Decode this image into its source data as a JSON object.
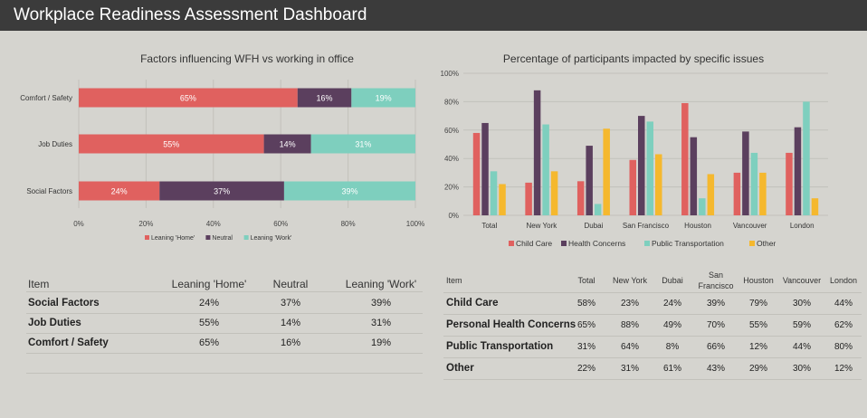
{
  "dashboard": {
    "title": "Workplace Readiness Assessment Dashboard"
  },
  "chart_data": [
    {
      "type": "bar",
      "orientation": "horizontal",
      "stacked": true,
      "title": "Factors influencing WFH vs working in office",
      "categories": [
        "Comfort / Safety",
        "Job Duties",
        "Social Factors"
      ],
      "series": [
        {
          "name": "Leaning 'Home'",
          "values": [
            65,
            55,
            24
          ],
          "color": "#e0615f"
        },
        {
          "name": "Neutral",
          "values": [
            16,
            14,
            37
          ],
          "color": "#5b3f5e"
        },
        {
          "name": "Leaning 'Work'",
          "values": [
            19,
            31,
            39
          ],
          "color": "#7ecfbe"
        }
      ],
      "xticks": [
        "0%",
        "20%",
        "40%",
        "60%",
        "80%",
        "100%"
      ],
      "xlim": [
        0,
        100
      ],
      "legend": "bottom"
    },
    {
      "type": "bar",
      "title": "Percentage of participants impacted by specific issues",
      "categories": [
        "Total",
        "New York",
        "Dubai",
        "San Francisco",
        "Houston",
        "Vancouver",
        "London"
      ],
      "series": [
        {
          "name": "Child Care",
          "values": [
            58,
            23,
            24,
            39,
            79,
            30,
            44
          ],
          "color": "#e0615f"
        },
        {
          "name": "Health Concerns",
          "values": [
            65,
            88,
            49,
            70,
            55,
            59,
            62
          ],
          "color": "#5b3f5e"
        },
        {
          "name": "Public Transportation",
          "values": [
            31,
            64,
            8,
            66,
            12,
            44,
            80
          ],
          "color": "#7ecfbe"
        },
        {
          "name": "Other",
          "values": [
            22,
            31,
            61,
            43,
            29,
            30,
            12
          ],
          "color": "#f5b82e"
        }
      ],
      "yticks": [
        "0%",
        "20%",
        "40%",
        "60%",
        "80%",
        "100%"
      ],
      "ylim": [
        0,
        100
      ],
      "legend": "bottom"
    }
  ],
  "table_left": {
    "headers": [
      "Item",
      "Leaning 'Home'",
      "Neutral",
      "Leaning 'Work'"
    ],
    "rows": [
      {
        "label": "Social Factors",
        "cells": [
          "24%",
          "37%",
          "39%"
        ]
      },
      {
        "label": "Job Duties",
        "cells": [
          "55%",
          "14%",
          "31%"
        ]
      },
      {
        "label": "Comfort / Safety",
        "cells": [
          "65%",
          "16%",
          "19%"
        ]
      }
    ]
  },
  "table_right": {
    "headers": [
      "Item",
      "Total",
      "New York",
      "Dubai",
      "San Francisco",
      "Houston",
      "Vancouver",
      "London"
    ],
    "rows": [
      {
        "label": "Child Care",
        "cells": [
          "58%",
          "23%",
          "24%",
          "39%",
          "79%",
          "30%",
          "44%"
        ]
      },
      {
        "label": "Personal Health Concerns",
        "cells": [
          "65%",
          "88%",
          "49%",
          "70%",
          "55%",
          "59%",
          "62%"
        ]
      },
      {
        "label": "Public Transportation",
        "cells": [
          "31%",
          "64%",
          "8%",
          "66%",
          "12%",
          "44%",
          "80%"
        ]
      },
      {
        "label": "Other",
        "cells": [
          "22%",
          "31%",
          "61%",
          "43%",
          "29%",
          "30%",
          "12%"
        ]
      }
    ]
  }
}
